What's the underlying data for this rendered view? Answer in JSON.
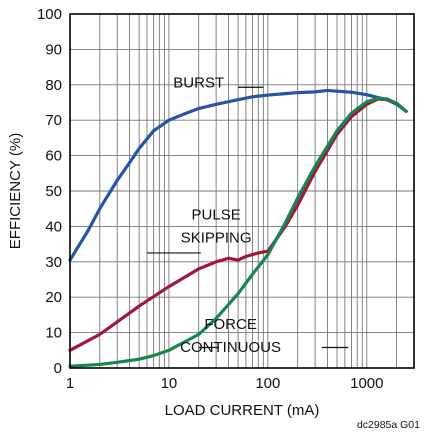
{
  "chart_data": {
    "type": "line",
    "title": "",
    "xlabel": "LOAD CURRENT  (mA)",
    "ylabel": "EFFICIENCY (%)",
    "xscale": "log",
    "xlim": [
      1,
      3000
    ],
    "ylim": [
      0,
      100
    ],
    "grid": true,
    "x_ticks": [
      1,
      10,
      100,
      1000
    ],
    "x_tick_labels": [
      "1",
      "10",
      "100",
      "1000"
    ],
    "y_ticks": [
      0,
      10,
      20,
      30,
      40,
      50,
      60,
      70,
      80,
      90,
      100
    ],
    "y_tick_labels": [
      "0",
      "10",
      "20",
      "30",
      "40",
      "50",
      "60",
      "70",
      "80",
      "90",
      "100"
    ],
    "series": [
      {
        "name": "BURST",
        "color": "#2754a3",
        "points": [
          [
            1,
            30.5
          ],
          [
            1.5,
            38.5
          ],
          [
            2,
            45
          ],
          [
            3,
            53
          ],
          [
            4,
            58
          ],
          [
            5,
            62
          ],
          [
            7,
            67
          ],
          [
            10,
            70
          ],
          [
            15,
            72
          ],
          [
            20,
            73.3
          ],
          [
            30,
            74.5
          ],
          [
            50,
            75.8
          ],
          [
            70,
            76.6
          ],
          [
            100,
            77.1
          ],
          [
            150,
            77.5
          ],
          [
            200,
            77.8
          ],
          [
            300,
            78
          ],
          [
            400,
            78.4
          ],
          [
            500,
            78.2
          ],
          [
            700,
            77.9
          ],
          [
            1000,
            77.2
          ],
          [
            1300,
            76.4
          ],
          [
            1600,
            75.8
          ],
          [
            2000,
            74.5
          ],
          [
            2500,
            72.5
          ]
        ]
      },
      {
        "name": "PULSE SKIPPING",
        "color": "#a0173b",
        "points": [
          [
            1,
            5
          ],
          [
            2,
            9.5
          ],
          [
            3,
            13
          ],
          [
            5,
            17.5
          ],
          [
            10,
            23
          ],
          [
            20,
            28
          ],
          [
            30,
            30
          ],
          [
            40,
            31
          ],
          [
            50,
            30.5
          ],
          [
            60,
            31.5
          ],
          [
            80,
            32.5
          ],
          [
            100,
            33
          ],
          [
            150,
            40
          ],
          [
            200,
            46
          ],
          [
            300,
            55.5
          ],
          [
            500,
            66
          ],
          [
            700,
            71
          ],
          [
            1000,
            74.5
          ],
          [
            1300,
            76
          ],
          [
            1600,
            75.8
          ],
          [
            2000,
            74.8
          ],
          [
            2500,
            72.5
          ]
        ]
      },
      {
        "name": "FORCE CONTINUOUS",
        "color": "#168550",
        "points": [
          [
            1,
            0.5
          ],
          [
            2,
            1
          ],
          [
            3,
            1.6
          ],
          [
            5,
            2.5
          ],
          [
            7,
            3.5
          ],
          [
            10,
            5
          ],
          [
            20,
            9.5
          ],
          [
            30,
            14
          ],
          [
            50,
            21
          ],
          [
            70,
            26.5
          ],
          [
            100,
            32
          ],
          [
            150,
            41
          ],
          [
            200,
            48
          ],
          [
            300,
            57
          ],
          [
            500,
            67
          ],
          [
            700,
            72
          ],
          [
            1000,
            75.2
          ],
          [
            1300,
            76.2
          ],
          [
            1600,
            76
          ],
          [
            2000,
            74.8
          ],
          [
            2500,
            72.5
          ]
        ]
      }
    ],
    "annotations": [
      {
        "lines": [
          "BURST"
        ],
        "label_x": 20,
        "label_y": 79.3,
        "leader_start_x": 50,
        "leader_start_y": 79.3,
        "leader_end_x": 90,
        "leader_end_y": 79.3
      },
      {
        "lines": [
          "PULSE",
          "SKIPPING"
        ],
        "label_x": 30,
        "label_y": 42,
        "leader_start_x": 21,
        "leader_start_y": 32.5,
        "leader_end_x": 6,
        "leader_end_y": 32.5
      },
      {
        "lines": [
          "FORCE",
          "CONTINUOUS"
        ],
        "label_x": 42,
        "label_y": 11,
        "leader_start_x": 32,
        "leader_start_y": 5.8,
        "leader_end_x": 20,
        "leader_end_y": 5.8,
        "leader2_start_x": 350,
        "leader2_start_y": 5.8,
        "leader2_end_x": 650,
        "leader2_end_y": 5.8
      }
    ],
    "figure_id": "dc2985a G01"
  }
}
